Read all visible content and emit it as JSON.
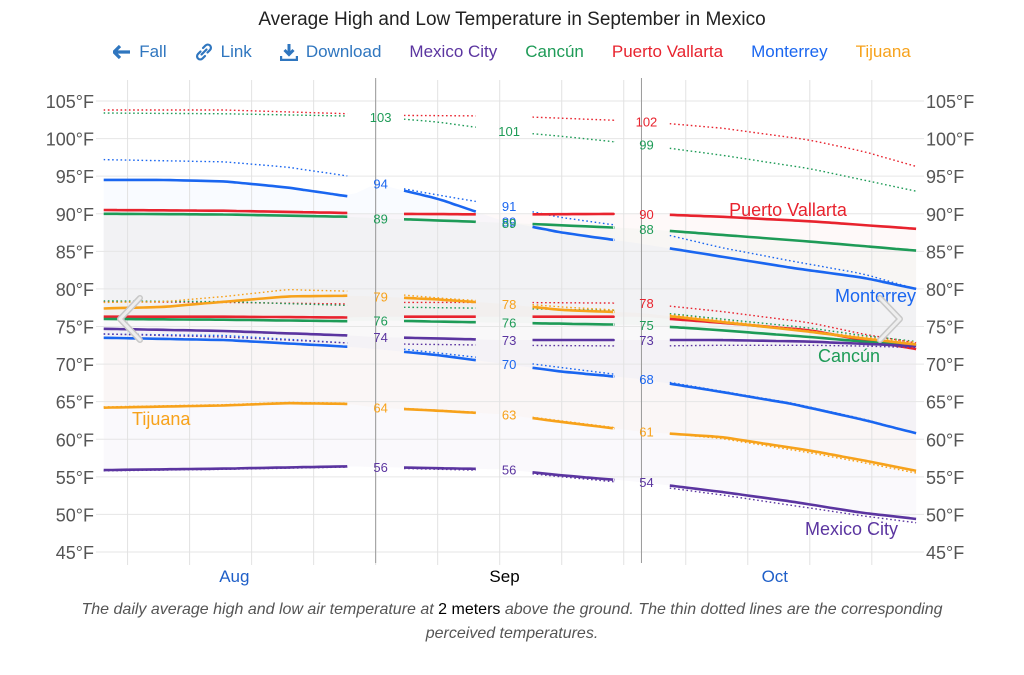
{
  "title": "Average High and Low Temperature in September in Mexico",
  "toolbar": {
    "fall_label": "Fall",
    "link_label": "Link",
    "download_label": "Download",
    "icons": {
      "fall": "arrow-left-icon",
      "link": "link-icon",
      "download": "download-icon"
    },
    "link_color": "#2f76bf"
  },
  "legend": [
    {
      "name": "Mexico City",
      "color": "#5b35a0"
    },
    {
      "name": "Cancún",
      "color": "#1e9b57"
    },
    {
      "name": "Puerto Vallarta",
      "color": "#e8232e"
    },
    {
      "name": "Monterrey",
      "color": "#1a66f0"
    },
    {
      "name": "Tijuana",
      "color": "#f7a21b"
    }
  ],
  "caption": {
    "part1": "The daily average high and low air temperature at ",
    "bold": "2 meters",
    "part2": " above the ground. The thin dotted lines are the corresponding perceived temperatures."
  },
  "chart_data": {
    "type": "line",
    "title": "Average High and Low Temperature in September in Mexico",
    "x_unit": "days since Aug 1",
    "xlim": [
      0.3,
      92
    ],
    "ylim": [
      45,
      105
    ],
    "y_ticks": [
      "105°F",
      "100°F",
      "95°F",
      "90°F",
      "85°F",
      "80°F",
      "75°F",
      "70°F",
      "65°F",
      "60°F",
      "55°F",
      "50°F",
      "45°F"
    ],
    "y_tick_values": [
      105,
      100,
      95,
      90,
      85,
      80,
      75,
      70,
      65,
      60,
      55,
      50,
      45
    ],
    "x_month_labels": [
      {
        "label": "Aug",
        "day": 15.5,
        "color": "#1f5fc8"
      },
      {
        "label": "Sep",
        "day": 46,
        "color": "#000000"
      },
      {
        "label": "Oct",
        "day": 76.5,
        "color": "#1f5fc8"
      }
    ],
    "month_boundaries": [
      31,
      61
    ],
    "grid": true,
    "label_days": [
      31,
      45.5,
      61
    ],
    "series": [
      {
        "name": "Monterrey",
        "color": "#1a66f0",
        "high": {
          "days": [
            0.3,
            7,
            14,
            21,
            28,
            31,
            38,
            45.5,
            52,
            61,
            70,
            78,
            86,
            92
          ],
          "values": [
            94.5,
            94.5,
            94.3,
            93.5,
            92.3,
            94,
            92,
            89,
            87.5,
            86,
            84.3,
            82.8,
            81.5,
            80
          ]
        },
        "high_perceived": {
          "days": [
            0.3,
            14,
            21,
            28,
            31,
            38,
            45.5,
            52,
            61,
            70,
            78,
            86,
            92
          ],
          "values": [
            97.2,
            96.9,
            96.2,
            95,
            94,
            92.5,
            91,
            89.5,
            88,
            85.5,
            83.7,
            82,
            80
          ]
        },
        "low": {
          "days": [
            0.3,
            14,
            28,
            31,
            38,
            45.5,
            52,
            61,
            70,
            78,
            86,
            92
          ],
          "values": [
            73.5,
            73.2,
            72.3,
            72,
            71.2,
            70,
            69,
            68,
            66.3,
            64.7,
            62.6,
            60.8
          ]
        },
        "low_perceived": {
          "days": [
            0.3,
            14,
            28,
            31,
            45.5,
            61,
            70,
            78,
            86,
            92
          ],
          "values": [
            74,
            73.8,
            72.8,
            72.4,
            70.5,
            68.2,
            66.4,
            64.8,
            62.7,
            60.8
          ]
        },
        "labels": {
          "high": [
            94,
            89,
            null
          ],
          "high_perceived": [
            null,
            91,
            null
          ],
          "low": [
            null,
            70,
            68
          ]
        },
        "name_label": {
          "text": "Monterrey",
          "at": "high-end"
        }
      },
      {
        "name": "Puerto Vallarta",
        "color": "#e8232e",
        "high": {
          "days": [
            0.3,
            14,
            28,
            31,
            45.5,
            61,
            70,
            80,
            92
          ],
          "values": [
            90.5,
            90.4,
            90.1,
            90,
            89.9,
            90,
            89.6,
            89,
            88
          ]
        },
        "high_perceived": {
          "days": [
            0.3,
            14,
            28,
            31,
            45.5,
            61,
            70,
            80,
            86,
            92
          ],
          "values": [
            103.8,
            103.8,
            103.3,
            103.1,
            103,
            102.3,
            101.4,
            99.8,
            98.3,
            96.3
          ]
        },
        "low": {
          "days": [
            0.3,
            14,
            28,
            31,
            45.5,
            61,
            70,
            80,
            86,
            92
          ],
          "values": [
            76.3,
            76.3,
            76.2,
            76.3,
            76.3,
            76.3,
            75.5,
            74.5,
            73.2,
            72
          ]
        },
        "low_perceived": {
          "days": [
            0.3,
            14,
            28,
            31,
            45.5,
            61,
            70,
            80,
            86,
            92
          ],
          "values": [
            78.3,
            78.2,
            78,
            78.2,
            78.2,
            78.1,
            77,
            75.5,
            74,
            72.8
          ]
        },
        "labels": {
          "high": [
            null,
            null,
            90
          ],
          "high_perceived": [
            null,
            null,
            102
          ],
          "low_perceived": [
            null,
            null,
            78
          ]
        },
        "name_label": {
          "text": "Puerto Vallarta",
          "at": "high-top"
        }
      },
      {
        "name": "Cancún",
        "color": "#1e9b57",
        "high": {
          "days": [
            0.3,
            14,
            28,
            31,
            45.5,
            61,
            70,
            80,
            92
          ],
          "values": [
            90,
            89.9,
            89.6,
            89.4,
            88.8,
            88,
            87.2,
            86.3,
            85.1
          ]
        },
        "high_perceived": {
          "days": [
            0.3,
            14,
            28,
            31,
            38,
            45.5,
            52,
            61,
            70,
            80,
            86,
            92
          ],
          "values": [
            103.4,
            103.3,
            103,
            102.9,
            102.2,
            101,
            100.3,
            99.2,
            97.8,
            96,
            94.5,
            93
          ]
        },
        "low": {
          "days": [
            0.3,
            14,
            28,
            31,
            45.5,
            61,
            70,
            80,
            86,
            92
          ],
          "values": [
            76,
            75.9,
            75.7,
            75.8,
            75.5,
            75.2,
            74.5,
            73.6,
            73,
            72.5
          ]
        },
        "low_perceived": {
          "days": [
            0.3,
            14,
            28,
            31,
            45.5,
            61,
            70,
            80,
            86,
            92
          ],
          "values": [
            78.4,
            78.3,
            77.8,
            77.6,
            77.4,
            77.1,
            76,
            74.8,
            73.8,
            73
          ]
        },
        "labels": {
          "high_perceived": [
            103,
            101,
            99
          ],
          "high": [
            89,
            89,
            88
          ],
          "low": [
            76,
            76,
            75
          ]
        },
        "name_label": {
          "text": "Cancún",
          "at": "low-end"
        }
      },
      {
        "name": "Mexico City",
        "color": "#5b35a0",
        "high": {
          "days": [
            0.3,
            14,
            28,
            31,
            45.5,
            61,
            70,
            80,
            86,
            92
          ],
          "values": [
            74.7,
            74.4,
            73.8,
            73.6,
            73.2,
            73.2,
            73.2,
            73,
            72.7,
            72.4
          ]
        },
        "high_perceived": {
          "days": [
            0.3,
            14,
            28,
            31,
            45.5,
            61,
            70,
            80,
            86,
            92
          ],
          "values": [
            74,
            73.6,
            72.8,
            72.7,
            72.5,
            72.4,
            72.5,
            72.5,
            72.4,
            72.2
          ]
        },
        "low": {
          "days": [
            0.3,
            14,
            28,
            31,
            45.5,
            52,
            61,
            70,
            78,
            86,
            92
          ],
          "values": [
            55.9,
            56.1,
            56.4,
            56.3,
            56,
            55.2,
            54.3,
            53,
            51.7,
            50.2,
            49.4
          ]
        },
        "low_perceived": {
          "days": [
            0.3,
            14,
            28,
            31,
            45.5,
            52,
            61,
            70,
            78,
            86,
            92
          ],
          "values": [
            55.8,
            56,
            56.3,
            56.2,
            55.8,
            55,
            54,
            52.6,
            51.2,
            49.8,
            48.9
          ]
        },
        "labels": {
          "high": [
            74,
            73,
            73
          ],
          "low": [
            56,
            56,
            54
          ]
        },
        "name_label": {
          "text": "Mexico City",
          "at": "low-end"
        }
      },
      {
        "name": "Tijuana",
        "color": "#f7a21b",
        "high": {
          "days": [
            0.3,
            7,
            14,
            21,
            28,
            31,
            38,
            45.5,
            52,
            61,
            70,
            80,
            86,
            92
          ],
          "values": [
            77.4,
            77.6,
            78.3,
            79,
            79.1,
            79,
            78.6,
            78,
            77.2,
            76.8,
            75.6,
            74.3,
            73.4,
            72.6
          ]
        },
        "high_perceived": {
          "days": [
            0.3,
            7,
            14,
            21,
            28,
            31,
            38,
            45.5,
            52,
            61,
            70,
            80,
            86,
            92
          ],
          "values": [
            78.2,
            78.3,
            79,
            79.9,
            79.7,
            79.5,
            78.8,
            78.2,
            77.6,
            77,
            75.8,
            74.4,
            73.6,
            72.9
          ]
        },
        "low": {
          "days": [
            0.3,
            14,
            21,
            28,
            31,
            38,
            45.5,
            52,
            61,
            70,
            80,
            86,
            92
          ],
          "values": [
            64.2,
            64.5,
            64.8,
            64.7,
            64.2,
            63.8,
            63.3,
            62.3,
            61,
            60.3,
            58.5,
            57.2,
            55.8
          ]
        },
        "low_perceived": {
          "days": [
            0.3,
            14,
            21,
            28,
            31,
            45.5,
            61,
            70,
            80,
            86,
            92
          ],
          "values": [
            64.3,
            64.6,
            64.9,
            64.8,
            64.3,
            63.4,
            61.1,
            60.1,
            58.2,
            56.9,
            55.5
          ]
        },
        "labels": {
          "high": [
            79,
            78,
            null
          ],
          "low": [
            64,
            63,
            61
          ]
        },
        "name_label": {
          "text": "Tijuana",
          "at": "low-start"
        }
      }
    ]
  }
}
